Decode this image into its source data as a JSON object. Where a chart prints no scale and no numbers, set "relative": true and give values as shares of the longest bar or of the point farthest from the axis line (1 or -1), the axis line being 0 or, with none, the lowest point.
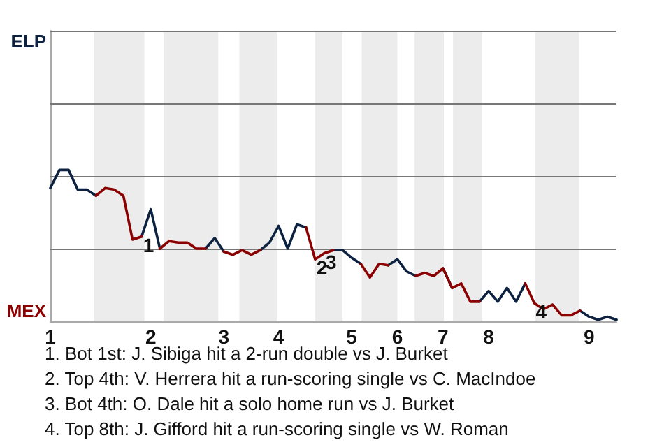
{
  "chart_data": {
    "type": "line",
    "relative": true,
    "categories": [
      "1",
      null,
      null,
      null,
      null,
      null,
      null,
      null,
      null,
      null,
      null,
      "2",
      null,
      null,
      null,
      null,
      null,
      null,
      null,
      "3",
      null,
      null,
      null,
      null,
      null,
      "4",
      null,
      null,
      null,
      null,
      null,
      null,
      null,
      "5",
      null,
      null,
      null,
      null,
      "6",
      null,
      null,
      null,
      null,
      "7",
      null,
      null,
      null,
      null,
      "8",
      null,
      null,
      null,
      null,
      null,
      null,
      null,
      null,
      null,
      null,
      "9",
      null,
      null,
      null
    ],
    "marker": "none",
    "line_style": "solid",
    "series": [
      {
        "color": "#0d2240",
        "values": [
          0.88,
          1,
          1,
          0.87,
          0.87,
          0.83,
          null,
          null,
          null,
          null,
          0.56,
          0.74,
          0.48,
          null,
          null,
          null,
          null,
          0.48,
          0.55,
          0.46,
          null,
          null,
          null,
          0.47,
          0.52,
          0.63,
          0.48,
          0.64,
          0.62,
          null,
          null,
          0.47,
          0.47,
          0.42,
          0.38,
          null,
          null,
          0.37,
          0.41,
          0.33,
          0.3,
          null,
          null,
          0.35,
          0.22,
          null,
          null,
          0.13,
          0.2,
          0.13,
          0.22,
          0.13,
          0.25,
          null,
          null,
          null,
          null,
          null,
          0.07,
          0.03,
          0.01,
          0.03,
          0.01
        ]
      },
      {
        "color": "#8b0000",
        "values": [
          null,
          null,
          null,
          null,
          null,
          0.83,
          0.88,
          0.87,
          0.83,
          0.54,
          0.56,
          null,
          0.48,
          0.53,
          0.52,
          0.52,
          0.48,
          0.48,
          null,
          0.46,
          0.44,
          0.47,
          0.44,
          0.47,
          null,
          null,
          null,
          null,
          0.62,
          0.41,
          0.45,
          0.47,
          null,
          null,
          0.38,
          0.29,
          0.38,
          0.37,
          null,
          null,
          0.3,
          0.32,
          0.3,
          0.35,
          0.22,
          0.25,
          0.13,
          0.13,
          null,
          null,
          null,
          null,
          0.25,
          0.12,
          0.08,
          0.11,
          0.04,
          0.04,
          0.07,
          null,
          null,
          null,
          null
        ]
      }
    ],
    "ref_lines": [
      {
        "axis": "y",
        "value": 0.48,
        "color": "#777777"
      },
      {
        "axis": "y",
        "value": 0.96,
        "color": "#777777"
      },
      {
        "axis": "y",
        "value": 1.44,
        "color": "#777777"
      },
      {
        "axis": "y",
        "value": 1.92,
        "color": "#777777"
      }
    ],
    "annotations": [
      "ELP",
      "MEX",
      {
        "text": "1",
        "y": 0.56
      },
      {
        "text": "2",
        "y": 0.41
      },
      {
        "text": "3",
        "y": 0.45
      },
      {
        "text": "4",
        "y": 0.12
      },
      "1. Bot 1st: J. Sibiga hit a 2-run double vs J. Burket",
      "2. Top 4th: V. Herrera hit a run-scoring single vs C. MacIndoe",
      "3. Bot 4th: O. Dale hit a solo home run vs J. Burket",
      "4. Top 8th: J. Gifford hit a run-scoring single vs W. Roman"
    ]
  }
}
